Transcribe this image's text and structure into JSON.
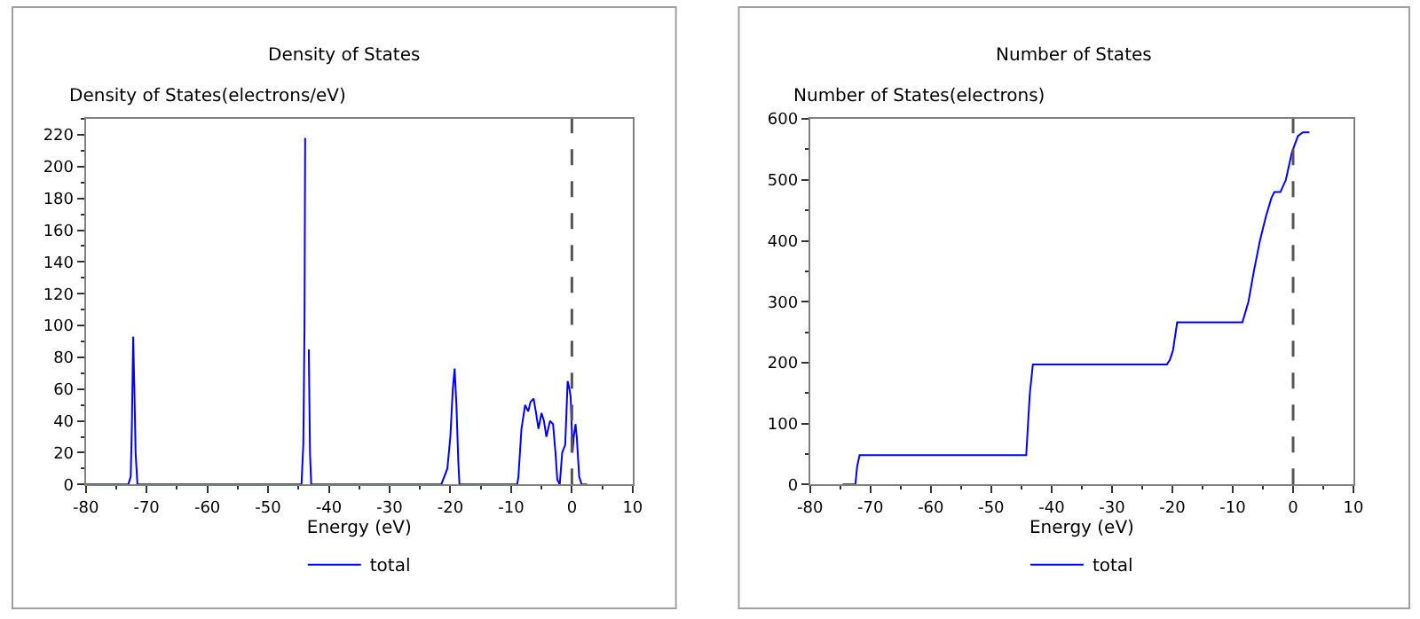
{
  "chart_data": [
    {
      "type": "line",
      "title": "Density of States",
      "ylabel": "Density of States(electrons/eV)",
      "xlabel": "Energy (eV)",
      "x": [
        -80,
        -73,
        -72.6,
        -72.4,
        -72.2,
        -72.0,
        -71.8,
        -71.5,
        -44.5,
        -44.2,
        -44.0,
        -43.9,
        -43.7,
        -43.5,
        -43.3,
        -43.1,
        -42.9,
        -21.5,
        -20.5,
        -20.0,
        -19.6,
        -19.3,
        -19.0,
        -18.7,
        -18.5,
        -9.0,
        -8.8,
        -8.3,
        -7.7,
        -7.2,
        -6.8,
        -6.3,
        -5.9,
        -5.5,
        -5.0,
        -4.6,
        -4.2,
        -3.6,
        -3.1,
        -2.7,
        -2.4,
        -2.0,
        -1.6,
        -1.1,
        -0.7,
        -0.4,
        -0.2,
        0.1,
        0.3,
        0.6,
        0.8,
        1.2,
        1.6,
        2.5
      ],
      "series": [
        {
          "name": "total",
          "color": "#0000ff",
          "values": [
            0,
            0,
            5,
            40,
            93,
            60,
            20,
            0,
            0,
            25,
            100,
            218,
            null,
            null,
            85,
            20,
            0,
            0,
            10,
            30,
            60,
            73,
            50,
            15,
            0,
            0,
            5,
            35,
            50,
            46,
            52,
            54,
            45,
            35,
            45,
            40,
            30,
            40,
            38,
            20,
            3,
            0,
            20,
            25,
            65,
            60,
            55,
            20,
            30,
            38,
            30,
            5,
            0,
            0
          ]
        }
      ],
      "xlim": [
        -80,
        10
      ],
      "xticks": [
        -80,
        -70,
        -60,
        -50,
        -40,
        -30,
        -20,
        -10,
        0,
        10
      ],
      "ylim": [
        0,
        230
      ],
      "yticks": [
        0,
        20,
        40,
        60,
        80,
        100,
        120,
        140,
        160,
        180,
        200,
        220
      ],
      "ref_lines": [
        {
          "axis": "x",
          "value": 0,
          "color": "#555555",
          "line_style": "dashed"
        }
      ],
      "legend": "bottom"
    },
    {
      "type": "line",
      "title": "Number of States",
      "ylabel": "Number of States(electrons)",
      "xlabel": "Energy (eV)",
      "x": [
        -74.6,
        -72.5,
        -72.2,
        -71.8,
        -44.2,
        -43.9,
        -43.6,
        -43.1,
        -20.9,
        -20.4,
        -19.9,
        -19.2,
        -8.4,
        -7.4,
        -6.5,
        -5.5,
        -4.5,
        -3.6,
        -3.1,
        -2.1,
        -1.2,
        -0.2,
        0.8,
        1.6,
        2.7
      ],
      "series": [
        {
          "name": "total",
          "color": "#0000ff",
          "values": [
            0,
            0,
            30,
            48,
            48,
            100,
            150,
            197,
            197,
            205,
            220,
            266,
            266,
            300,
            350,
            400,
            440,
            470,
            480,
            480,
            500,
            545,
            572,
            578,
            578
          ]
        }
      ],
      "xlim": [
        -80,
        10
      ],
      "xticks": [
        -80,
        -70,
        -60,
        -50,
        -40,
        -30,
        -20,
        -10,
        0,
        10
      ],
      "ylim": [
        0,
        600
      ],
      "yticks": [
        0,
        100,
        200,
        300,
        400,
        500,
        600
      ],
      "ref_lines": [
        {
          "axis": "x",
          "value": 0,
          "color": "#555555",
          "line_style": "dashed"
        }
      ],
      "legend": "bottom"
    }
  ]
}
